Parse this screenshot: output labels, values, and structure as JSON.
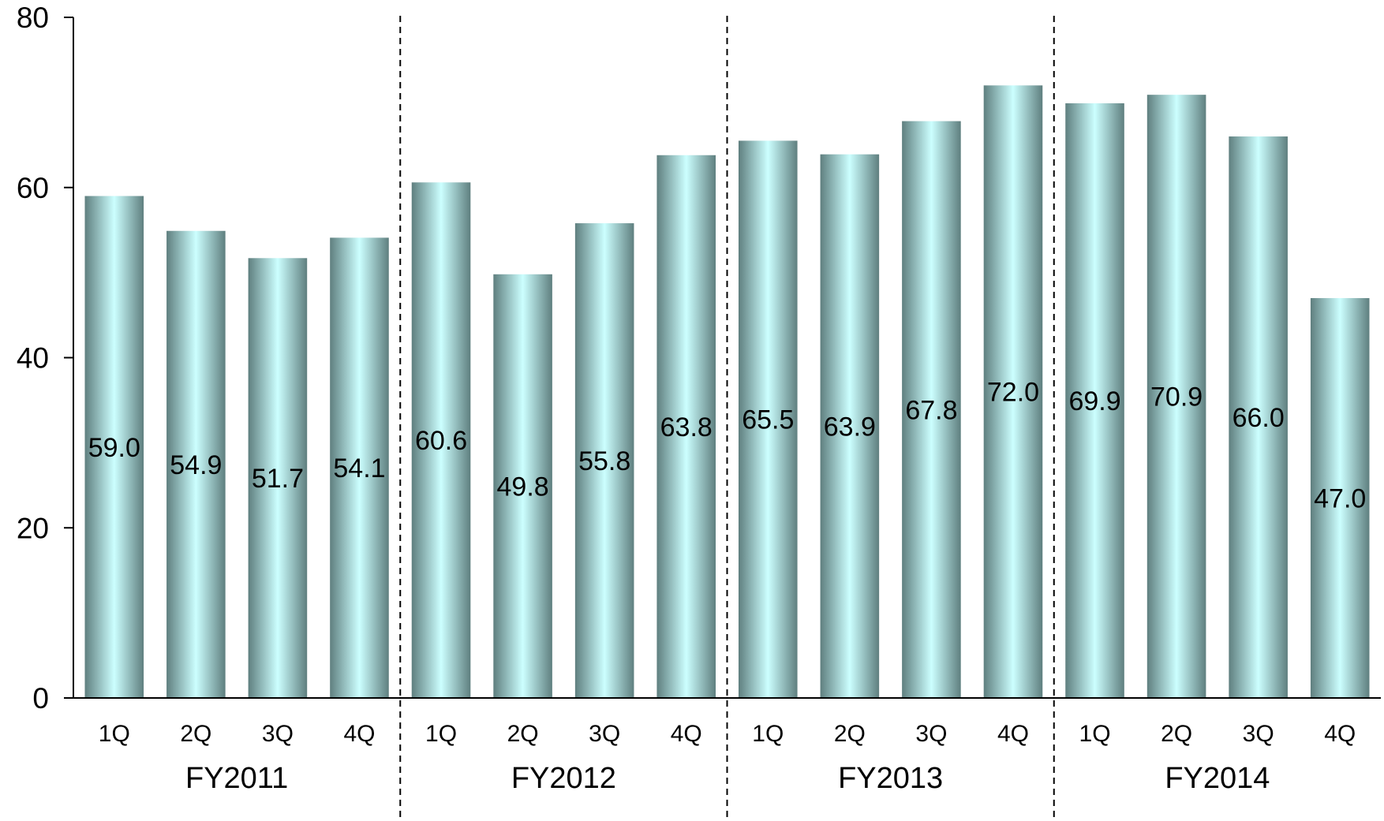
{
  "chart_data": {
    "type": "bar",
    "title": "",
    "xlabel": "",
    "ylabel": "",
    "ylim": [
      0,
      80
    ],
    "yticks": [
      "0",
      "20",
      "40",
      "60",
      "80"
    ],
    "groups": [
      {
        "label": "FY2011",
        "categories": [
          "1Q",
          "2Q",
          "3Q",
          "4Q"
        ],
        "values": [
          59.0,
          54.9,
          51.7,
          54.1
        ],
        "value_labels": [
          "59.0",
          "54.9",
          "51.7",
          "54.1"
        ]
      },
      {
        "label": "FY2012",
        "categories": [
          "1Q",
          "2Q",
          "3Q",
          "4Q"
        ],
        "values": [
          60.6,
          49.8,
          55.8,
          63.8
        ],
        "value_labels": [
          "60.6",
          "49.8",
          "55.8",
          "63.8"
        ]
      },
      {
        "label": "FY2013",
        "categories": [
          "1Q",
          "2Q",
          "3Q",
          "4Q"
        ],
        "values": [
          65.5,
          63.9,
          67.8,
          72.0
        ],
        "value_labels": [
          "65.5",
          "63.9",
          "67.8",
          "72.0"
        ]
      },
      {
        "label": "FY2014",
        "categories": [
          "1Q",
          "2Q",
          "3Q",
          "4Q"
        ],
        "values": [
          69.9,
          70.9,
          66.0,
          47.0
        ],
        "value_labels": [
          "69.9",
          "70.9",
          "66.0",
          "47.0"
        ]
      }
    ],
    "grid": false,
    "legend": "none",
    "colors": {
      "bar_edge": "#5f7f7f",
      "bar_center": "#ccffff",
      "axis": "#000000",
      "divider": "#000000"
    }
  }
}
